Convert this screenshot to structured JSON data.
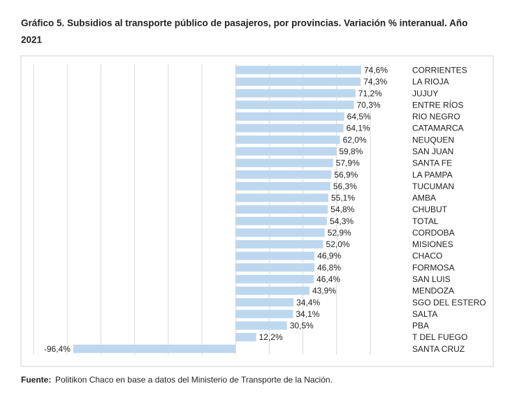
{
  "chart_data": {
    "type": "barh",
    "title": "Gráfico 5. Subsidios al transporte público de pasajeros, por provincias. Variación % interanual. Año 2021",
    "categories": [
      "CORRIENTES",
      "LA RIOJA",
      "JUJUY",
      "ENTRE RÍOS",
      "RIO NEGRO",
      "CATAMARCA",
      "NEUQUEN",
      "SAN JUAN",
      "SANTA FE",
      "LA PAMPA",
      "TUCUMAN",
      "AMBA",
      "CHUBUT",
      "TOTAL",
      "CORDOBA",
      "MISIONES",
      "CHACO",
      "FORMOSA",
      "SAN LUIS",
      "MENDOZA",
      "SGO DEL ESTERO",
      "SALTA",
      "PBA",
      "T DEL FUEGO",
      "SANTA CRUZ"
    ],
    "values": [
      74.6,
      74.3,
      71.2,
      70.3,
      64.5,
      64.1,
      62.0,
      59.8,
      57.9,
      56.9,
      56.3,
      55.1,
      54.8,
      54.3,
      52.9,
      52.0,
      46.9,
      46.8,
      46.4,
      43.9,
      34.4,
      34.1,
      30.5,
      12.2,
      -96.4
    ],
    "value_labels": [
      "74,6%",
      "74,3%",
      "71,2%",
      "70,3%",
      "64,5%",
      "64,1%",
      "62,0%",
      "59,8%",
      "57,9%",
      "56,9%",
      "56,3%",
      "55,1%",
      "54,8%",
      "54,3%",
      "52,9%",
      "52,0%",
      "46,9%",
      "46,8%",
      "46,4%",
      "43,9%",
      "34,4%",
      "34,1%",
      "30,5%",
      "12,2%",
      "-96,4%"
    ],
    "color": "#bdd7ee",
    "xlim": [
      -120,
      80
    ],
    "xticks": [
      -120,
      -100,
      -80,
      -60,
      -40,
      -20,
      0,
      20,
      40,
      60,
      80
    ],
    "grid": true,
    "source_label": "Fuente:",
    "source": "Politikon Chaco en base a datos del Ministerio de Transporte de la Nación."
  }
}
